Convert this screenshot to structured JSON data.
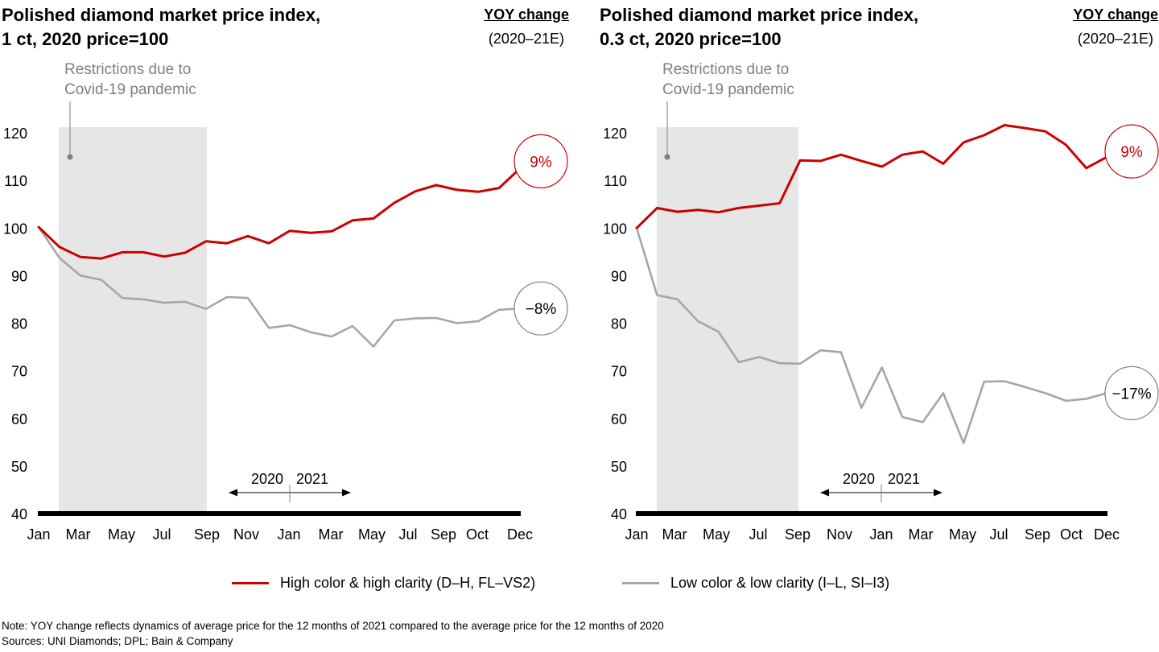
{
  "colors": {
    "high": "#cc0000",
    "low": "#a6a6a6",
    "shade": "#e6e6e6",
    "axis": "#000000"
  },
  "chart_data": [
    {
      "type": "line",
      "title": "Polished diamond market price index,\n1 ct, 2020 price=100",
      "yoy_label": "YOY change",
      "yoy_period": "(2020–21E)",
      "annotation": "Restrictions due to\nCovid-19 pandemic",
      "ylim": [
        40,
        120
      ],
      "yticks": [
        120,
        110,
        100,
        90,
        80,
        70,
        60,
        50,
        40
      ],
      "x_tick_labels": [
        "Jan",
        "Mar",
        "May",
        "Jul",
        "Sep",
        "Nov",
        "Jan",
        "Mar",
        "May",
        "Jul",
        "Sep",
        "Oct",
        "Dec"
      ],
      "year_marker": {
        "left": "2020",
        "right": "2021"
      },
      "series": [
        {
          "name": "High color & high clarity (D–H, FL–VS2)",
          "key": "high",
          "values": [
            100.2,
            96,
            93.9,
            93.6,
            94.9,
            94.9,
            94,
            94.8,
            97.2,
            96.8,
            98.3,
            96.8,
            99.4,
            99,
            99.3,
            101.6,
            102,
            105.3,
            107.7,
            109,
            108,
            107.6,
            108.4,
            112.5
          ],
          "yoy": "9%"
        },
        {
          "name": "Low color & low clarity (I–L, SI–I3)",
          "key": "low",
          "values": [
            100.2,
            93.7,
            90,
            89.1,
            85.3,
            85,
            84.3,
            84.5,
            83,
            85.5,
            85.3,
            79,
            79.6,
            78.1,
            77.2,
            79.4,
            75.1,
            80.6,
            81,
            81.1,
            80,
            80.4,
            82.8,
            83.1
          ],
          "yoy": "−8%"
        }
      ]
    },
    {
      "type": "line",
      "title": "Polished diamond market price index,\n0.3 ct, 2020 price=100",
      "yoy_label": "YOY change",
      "yoy_period": "(2020–21E)",
      "annotation": "Restrictions due to\nCovid-19 pandemic",
      "ylim": [
        40,
        120
      ],
      "yticks": [
        120,
        110,
        100,
        90,
        80,
        70,
        60,
        50,
        40
      ],
      "x_tick_labels": [
        "Jan",
        "Mar",
        "May",
        "Jul",
        "Sep",
        "Nov",
        "Jan",
        "Mar",
        "May",
        "Jul",
        "Sep",
        "Oct",
        "Dec"
      ],
      "year_marker": {
        "left": "2020",
        "right": "2021"
      },
      "series": [
        {
          "name": "High color & high clarity (D–H, FL–VS2)",
          "key": "high",
          "values": [
            100,
            104.2,
            103.4,
            103.8,
            103.3,
            104.2,
            104.7,
            105.2,
            114.2,
            114.1,
            115.4,
            114.1,
            112.9,
            115.4,
            116.1,
            113.5,
            118,
            119.5,
            121.6,
            121,
            120.3,
            117.5,
            112.6,
            114.9
          ],
          "yoy": "9%"
        },
        {
          "name": "Low color & low clarity (I–L, SI–I3)",
          "key": "low",
          "values": [
            100,
            85.9,
            85,
            80.4,
            78.2,
            71.8,
            72.9,
            71.6,
            71.5,
            74.3,
            73.9,
            62.2,
            70.7,
            60.3,
            59.2,
            65.3,
            54.8,
            67.7,
            67.8,
            66.6,
            65.3,
            63.7,
            64.1,
            65.3
          ],
          "yoy": "−17%"
        }
      ]
    }
  ],
  "legend": [
    {
      "label": "High color & high clarity (D–H, FL–VS2)",
      "key": "high"
    },
    {
      "label": "Low color & low clarity (I–L, SI–I3)",
      "key": "low"
    }
  ],
  "footnotes": {
    "note": "Note: YOY change reflects dynamics of average price for the 12 months of 2021 compared to the average price for the 12 months of 2020",
    "sources": "Sources: UNI Diamonds; DPL; Bain & Company"
  }
}
